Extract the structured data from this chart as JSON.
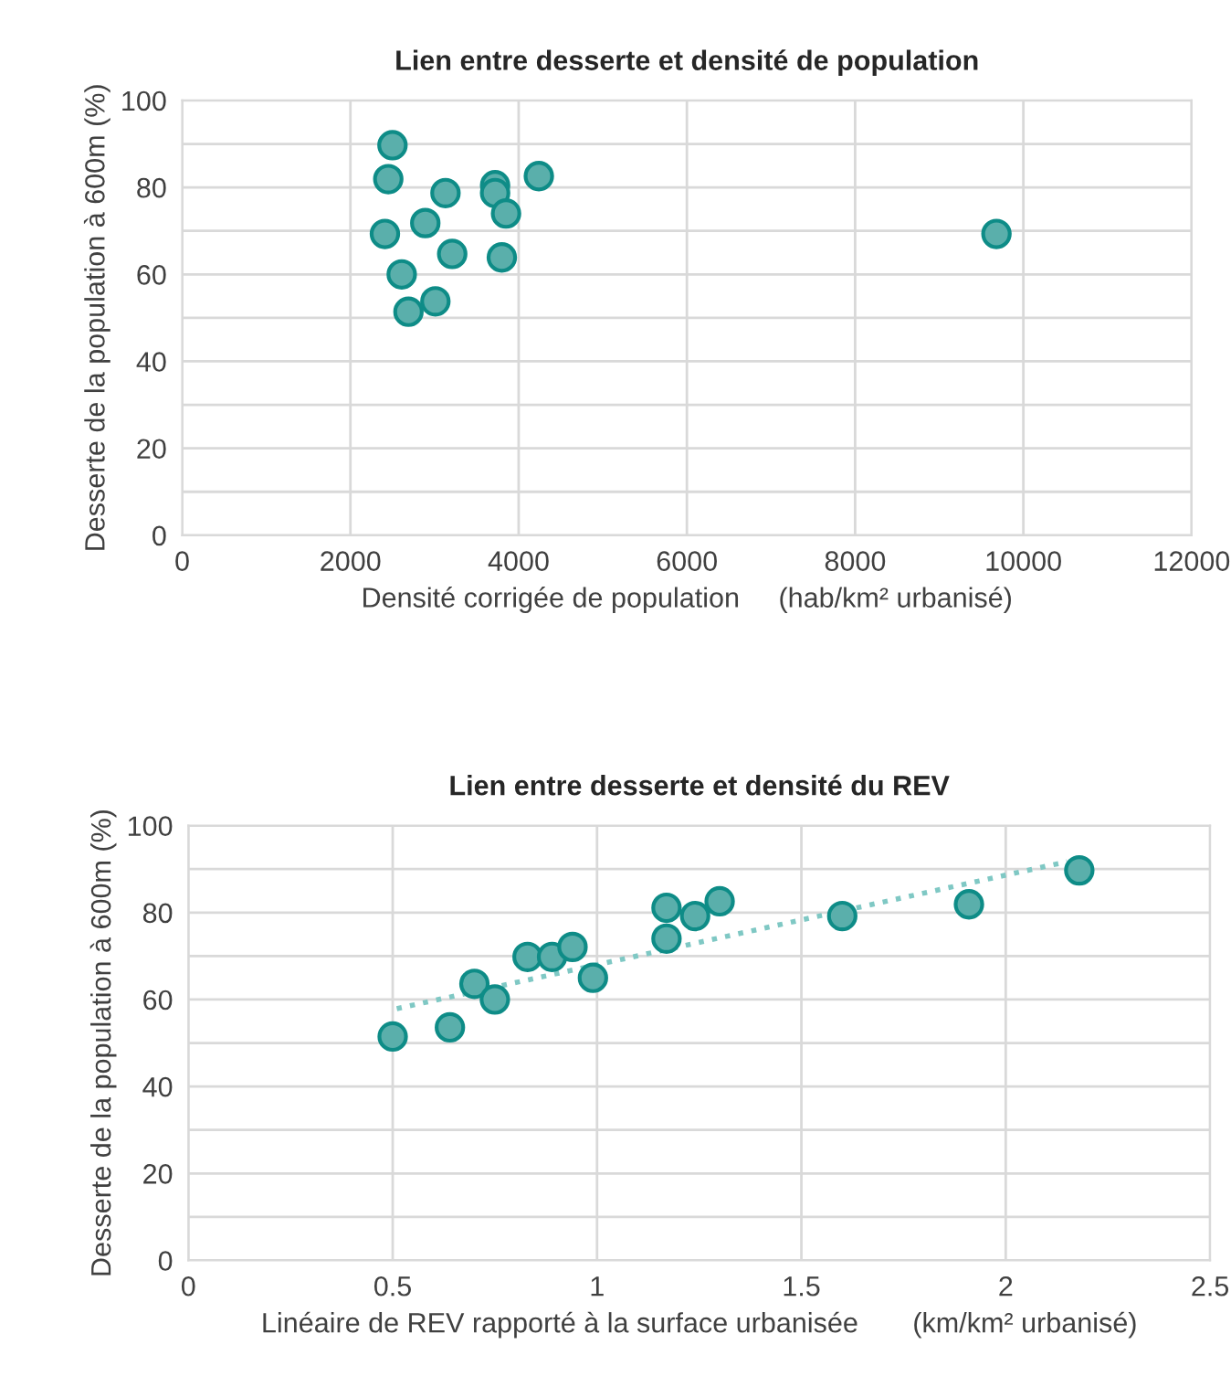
{
  "chart_data": [
    {
      "type": "scatter",
      "title": "Lien entre desserte et densité de population",
      "xlabel": "Densité corrigée de population     (hab/km² urbanisé)",
      "ylabel": "Desserte de la population à 600m (%)",
      "xlim": [
        0,
        12000
      ],
      "xticks": [
        0,
        2000,
        4000,
        6000,
        8000,
        10000,
        12000
      ],
      "ylim": [
        0,
        100
      ],
      "yticks": [
        0,
        {
          "value": 10,
          "label": null
        },
        20,
        {
          "value": 30,
          "label": null
        },
        40,
        {
          "value": 50,
          "label": null
        },
        60,
        {
          "value": 70,
          "label": null
        },
        80,
        {
          "value": 90,
          "label": null
        },
        100
      ],
      "grid": true,
      "legend": false,
      "marker": "circle",
      "series": [
        {
          "color": "#5aafab",
          "x": [
            2500,
            2450,
            3130,
            3720,
            3720,
            4240,
            3850,
            2890,
            2410,
            9680,
            3210,
            3800,
            2610,
            3010,
            2690
          ],
          "values": [
            89.7,
            81.9,
            78.7,
            80.5,
            78.7,
            82.6,
            74.0,
            71.8,
            69.3,
            69.3,
            64.7,
            63.9,
            60.0,
            53.8,
            51.4
          ]
        }
      ]
    },
    {
      "type": "scatter",
      "title": "Lien entre desserte et densité du REV",
      "xlabel": "Linéaire de REV rapporté à la surface urbanisée       (km/km² urbanisé)",
      "ylabel": "Desserte de la population à 600m (%)",
      "xlim": [
        0,
        2.5
      ],
      "xticks": [
        0,
        0.5,
        1,
        1.5,
        2,
        2.5
      ],
      "ylim": [
        0,
        100
      ],
      "yticks": [
        0,
        {
          "value": 10,
          "label": null
        },
        20,
        {
          "value": 30,
          "label": null
        },
        40,
        {
          "value": 50,
          "label": null
        },
        60,
        {
          "value": 70,
          "label": null
        },
        80,
        {
          "value": 90,
          "label": null
        },
        100
      ],
      "grid": true,
      "legend": false,
      "marker": "circle",
      "series": [
        {
          "color": "#5aafab",
          "x": [
            0.5,
            0.64,
            0.7,
            0.75,
            0.83,
            0.89,
            0.94,
            0.99,
            1.17,
            1.17,
            1.24,
            1.3,
            1.6,
            1.91,
            2.18
          ],
          "values": [
            51.5,
            53.6,
            63.6,
            60.0,
            69.8,
            69.8,
            72.1,
            65.0,
            81.1,
            74.0,
            79.2,
            82.6,
            79.2,
            81.9,
            89.7
          ]
        },
        {
          "type": "line",
          "line_style": "dotted",
          "marker": "none",
          "color": "#7fc8c4",
          "x": [
            0.51,
            2.15
          ],
          "values": [
            57.9,
            91.7
          ]
        }
      ]
    }
  ]
}
